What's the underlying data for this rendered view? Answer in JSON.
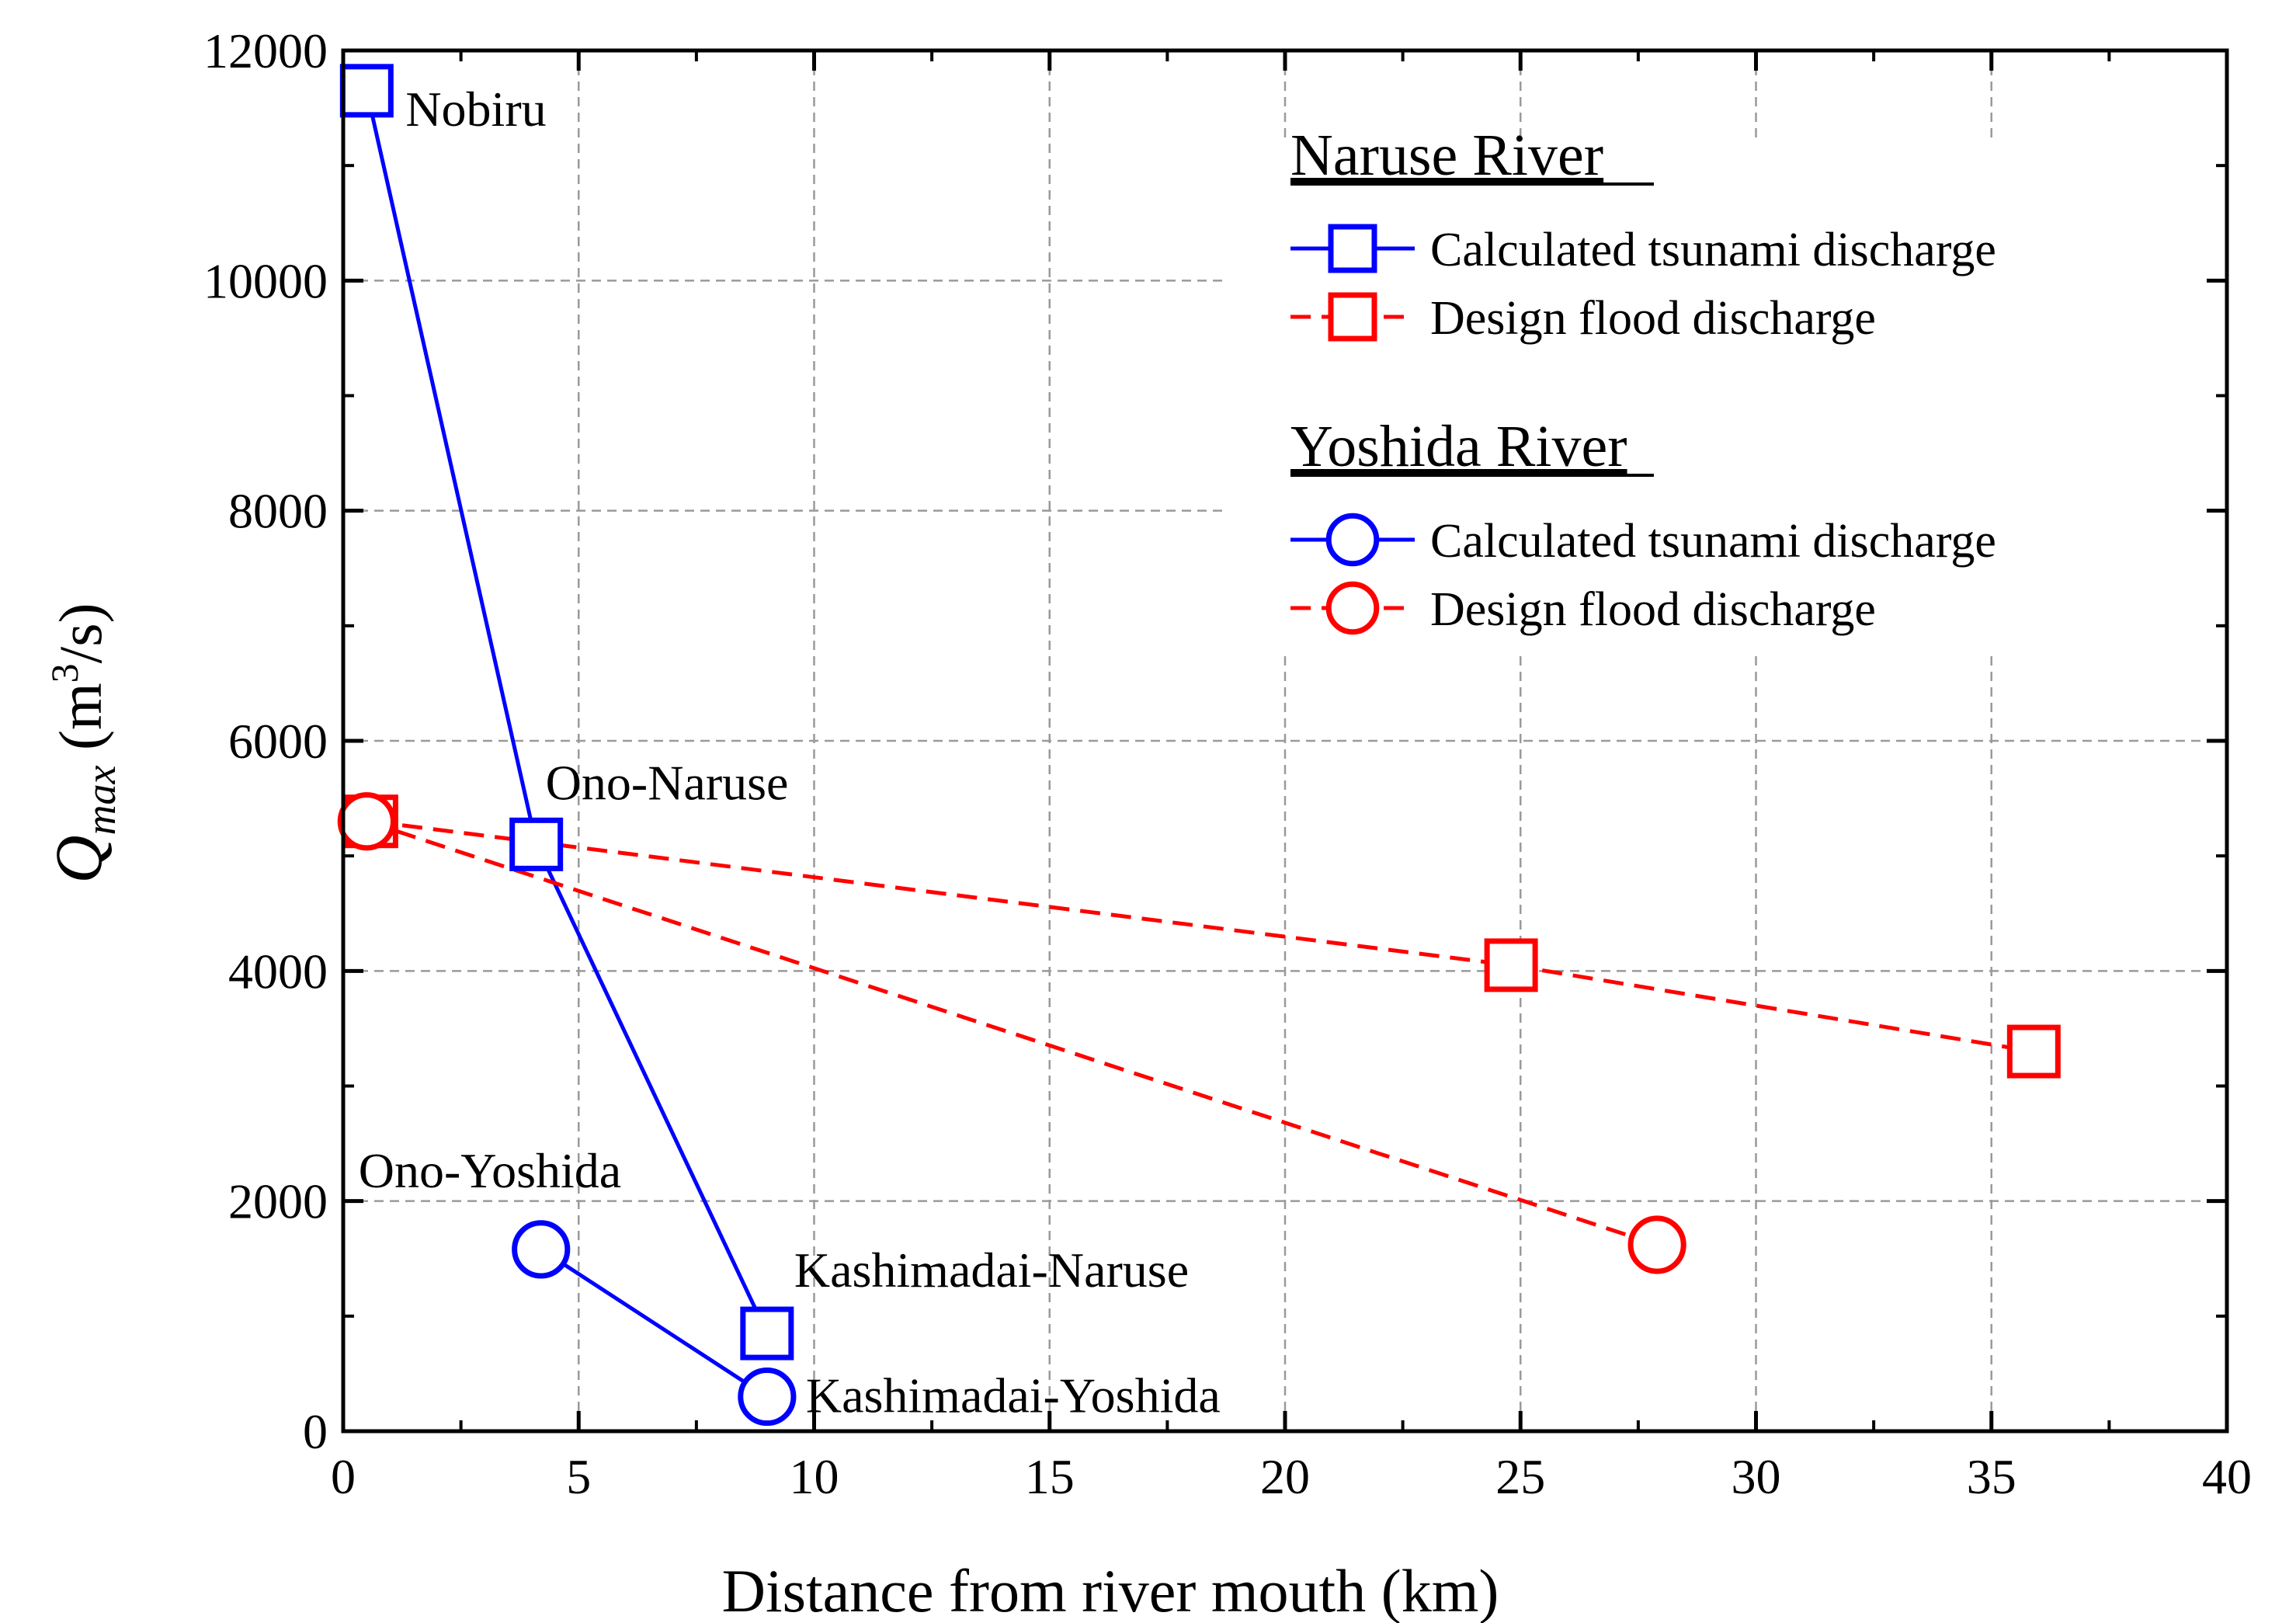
{
  "chart_data": {
    "type": "line",
    "xlabel": "Distance from river mouth (km)",
    "ylabel": {
      "main": "Q",
      "sub": "max",
      "unit_open": " (m",
      "unit_sup": "3",
      "unit_close": "/s)"
    },
    "xlim": [
      0,
      40
    ],
    "ylim": [
      0,
      12000
    ],
    "xticks": [
      0,
      5,
      10,
      15,
      20,
      25,
      30,
      35,
      40
    ],
    "yticks": [
      0,
      2000,
      4000,
      6000,
      8000,
      10000,
      12000
    ],
    "grid": true,
    "legend_groups": [
      {
        "title": "Naruse River",
        "entries": [
          "Calculated tsunami discharge",
          "Design flood discharge"
        ]
      },
      {
        "title": "Yoshida River",
        "entries": [
          "Calculated tsunami discharge",
          "Design flood discharge"
        ]
      }
    ],
    "series": [
      {
        "name": "Naruse River - Calculated tsunami discharge",
        "marker": "square",
        "color": "#0000ff",
        "dash": "solid",
        "points": [
          {
            "x": 0.5,
            "y": 11650
          },
          {
            "x": 4.1,
            "y": 5100
          },
          {
            "x": 9.0,
            "y": 850
          }
        ]
      },
      {
        "name": "Naruse River - Design flood discharge",
        "marker": "square",
        "color": "#ff0000",
        "dash": "dashed",
        "points": [
          {
            "x": 0.6,
            "y": 5300
          },
          {
            "x": 24.8,
            "y": 4050
          },
          {
            "x": 35.9,
            "y": 3300
          }
        ]
      },
      {
        "name": "Yoshida River - Calculated tsunami discharge",
        "marker": "circle",
        "color": "#0000ff",
        "dash": "solid",
        "points": [
          {
            "x": 4.2,
            "y": 1580
          },
          {
            "x": 9.0,
            "y": 300
          }
        ]
      },
      {
        "name": "Yoshida River - Design flood discharge",
        "marker": "circle",
        "color": "#ff0000",
        "dash": "dashed",
        "points": [
          {
            "x": 0.5,
            "y": 5300
          },
          {
            "x": 27.9,
            "y": 1620
          }
        ]
      }
    ],
    "annotations": [
      {
        "text": "Nobiru",
        "x": 0.5,
        "y": 11650
      },
      {
        "text": "Ono-Naruse",
        "x": 4.1,
        "y": 5100
      },
      {
        "text": "Ono-Yoshida",
        "x": 4.2,
        "y": 1580
      },
      {
        "text": "Kashimadai-Naruse",
        "x": 9.0,
        "y": 850
      },
      {
        "text": "Kashimadai-Yoshida",
        "x": 9.0,
        "y": 300
      }
    ]
  }
}
